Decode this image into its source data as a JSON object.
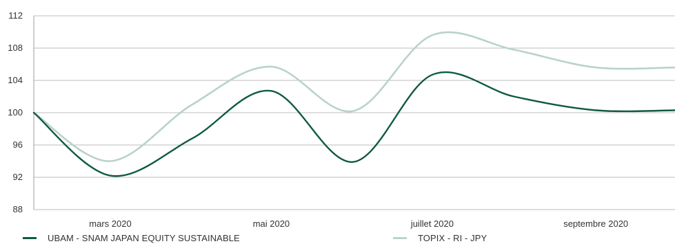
{
  "chart_data": {
    "type": "line",
    "title": "",
    "xlabel": "",
    "ylabel": "",
    "ylim": [
      88,
      112
    ],
    "yticks": [
      88,
      92,
      96,
      100,
      104,
      108,
      112
    ],
    "x": [
      "2020-02-01",
      "2020-03-01",
      "2020-04-01",
      "2020-05-01",
      "2020-06-01",
      "2020-07-01",
      "2020-08-01",
      "2020-09-01",
      "2020-10-01"
    ],
    "x_tick_labels": [
      {
        "label": "mars 2020",
        "date": "2020-03-01"
      },
      {
        "label": "mai 2020",
        "date": "2020-05-01"
      },
      {
        "label": "juillet 2020",
        "date": "2020-07-01"
      },
      {
        "label": "septembre 2020",
        "date": "2020-09-01"
      }
    ],
    "grid": true,
    "legend_position": "bottom",
    "series": [
      {
        "name": "UBAM - SNAM JAPAN EQUITY SUSTAINABLE",
        "color": "#0e5a3f",
        "values": [
          100,
          92.2,
          96.8,
          102.7,
          93.9,
          104.7,
          102.0,
          100.3,
          100.3
        ]
      },
      {
        "name": "TOPIX - RI - JPY",
        "color": "#b9d3c8",
        "values": [
          100,
          94.0,
          101.0,
          105.7,
          100.2,
          109.6,
          107.8,
          105.6,
          105.6
        ]
      }
    ]
  }
}
